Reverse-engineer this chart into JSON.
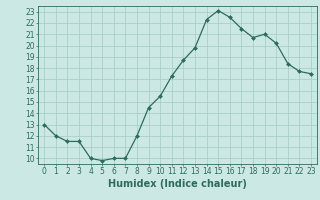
{
  "x": [
    0,
    1,
    2,
    3,
    4,
    5,
    6,
    7,
    8,
    9,
    10,
    11,
    12,
    13,
    14,
    15,
    16,
    17,
    18,
    19,
    20,
    21,
    22,
    23
  ],
  "y": [
    13,
    12,
    11.5,
    11.5,
    10,
    9.8,
    10,
    10,
    12,
    14.5,
    15.5,
    17.3,
    18.7,
    19.8,
    22.3,
    23.1,
    22.5,
    21.5,
    20.7,
    21,
    20.2,
    18.4,
    17.7,
    17.5
  ],
  "line_color": "#2e6b5e",
  "marker": "D",
  "marker_size": 2.0,
  "bg_color": "#cce8e4",
  "grid_color": "#aacfca",
  "xlabel": "Humidex (Indice chaleur)",
  "xlim": [
    -0.5,
    23.5
  ],
  "ylim": [
    9.5,
    23.5
  ],
  "yticks": [
    10,
    11,
    12,
    13,
    14,
    15,
    16,
    17,
    18,
    19,
    20,
    21,
    22,
    23
  ],
  "xticks": [
    0,
    1,
    2,
    3,
    4,
    5,
    6,
    7,
    8,
    9,
    10,
    11,
    12,
    13,
    14,
    15,
    16,
    17,
    18,
    19,
    20,
    21,
    22,
    23
  ],
  "tick_color": "#2e6b5e",
  "axis_color": "#2e6b5e",
  "xlabel_fontsize": 7,
  "tick_fontsize": 5.5,
  "linewidth": 0.9
}
